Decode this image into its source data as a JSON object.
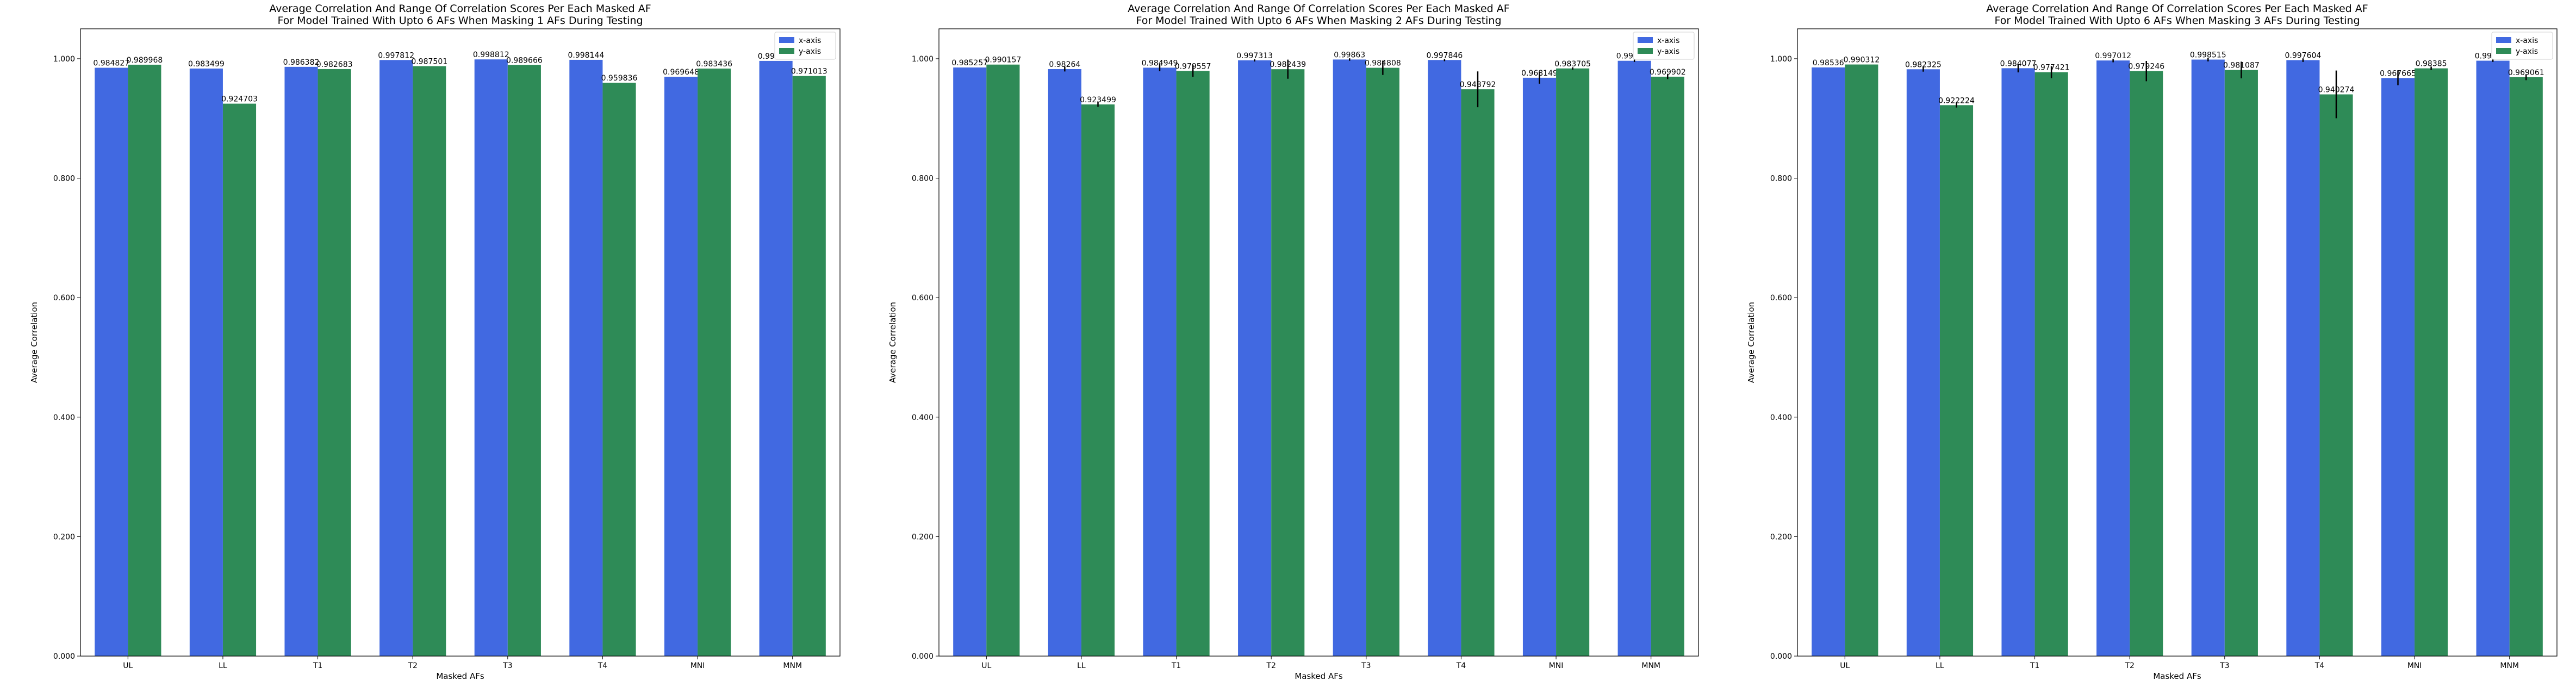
{
  "chart_data": [
    {
      "type": "bar",
      "title": "Average Correlation And Range Of Correlation Scores Per Each Masked AF",
      "subtitle": "For Model Trained With Upto 6 AFs When Masking 1 AFs During Testing",
      "xlabel": "Masked AFs",
      "ylabel": "Average Correlation",
      "ylim": [
        0,
        1.05
      ],
      "yticks": [
        "0.000",
        "0.200",
        "0.400",
        "0.600",
        "0.800",
        "1.000"
      ],
      "legend_placement": "top-right",
      "categories": [
        "UL",
        "LL",
        "T1",
        "T2",
        "T3",
        "T4",
        "MNI",
        "MNM"
      ],
      "series": [
        {
          "name": "x-axis",
          "color": "#4169e1",
          "values": [
            0.984827,
            0.983499,
            0.986382,
            0.997812,
            0.998812,
            0.998144,
            0.969648,
            0.996343
          ],
          "labels": [
            "0.984827",
            "0.983499",
            "0.986382",
            "0.997812",
            "0.998812",
            "0.998144",
            "0.969648",
            "0.996343"
          ],
          "err": [
            0,
            0,
            0,
            0,
            0,
            0,
            0,
            0
          ]
        },
        {
          "name": "y-axis",
          "color": "#2e8b57",
          "values": [
            0.989968,
            0.924703,
            0.982683,
            0.987501,
            0.989666,
            0.959836,
            0.983436,
            0.971013
          ],
          "labels": [
            "0.989968",
            "0.924703",
            "0.982683",
            "0.987501",
            "0.989666",
            "0.959836",
            "0.983436",
            "0.971013"
          ],
          "err": [
            0,
            0,
            0,
            0,
            0,
            0,
            0,
            0
          ]
        }
      ]
    },
    {
      "type": "bar",
      "title": "Average Correlation And Range Of Correlation Scores Per Each Masked AF",
      "subtitle": "For Model Trained With Upto 6 AFs When Masking 2 AFs During Testing",
      "xlabel": "Masked AFs",
      "ylabel": "Average Correlation",
      "ylim": [
        0,
        1.05
      ],
      "yticks": [
        "0.000",
        "0.200",
        "0.400",
        "0.600",
        "0.800",
        "1.000"
      ],
      "legend_placement": "top-right",
      "categories": [
        "UL",
        "LL",
        "T1",
        "T2",
        "T3",
        "T4",
        "MNI",
        "MNM"
      ],
      "series": [
        {
          "name": "x-axis",
          "color": "#4169e1",
          "values": [
            0.985257,
            0.98264,
            0.984949,
            0.997313,
            0.99863,
            0.997846,
            0.968149,
            0.996514
          ],
          "labels": [
            "0.985257",
            "0.98264",
            "0.984949",
            "0.997313",
            "0.99863",
            "0.997846",
            "0.968149",
            "0.996514"
          ],
          "err": [
            0,
            0.004,
            0.006,
            0.002,
            0.002,
            0.002,
            0.01,
            0.002
          ]
        },
        {
          "name": "y-axis",
          "color": "#2e8b57",
          "values": [
            0.990157,
            0.923499,
            0.979557,
            0.982439,
            0.984808,
            0.948792,
            0.983705,
            0.969902
          ],
          "labels": [
            "0.990157",
            "0.923499",
            "0.979557",
            "0.982439",
            "0.984808",
            "0.948792",
            "0.983705",
            "0.969902"
          ],
          "err": [
            0,
            0.004,
            0.01,
            0.016,
            0.012,
            0.03,
            0.002,
            0.004
          ]
        }
      ]
    },
    {
      "type": "bar",
      "title": "Average Correlation And Range Of Correlation Scores Per Each Masked AF",
      "subtitle": "For Model Trained With Upto 6 AFs When Masking 3 AFs During Testing",
      "xlabel": "Masked AFs",
      "ylabel": "Average Correlation",
      "ylim": [
        0,
        1.05
      ],
      "yticks": [
        "0.000",
        "0.200",
        "0.400",
        "0.600",
        "0.800",
        "1.000"
      ],
      "legend_placement": "top-right",
      "categories": [
        "UL",
        "LL",
        "T1",
        "T2",
        "T3",
        "T4",
        "MNI",
        "MNM"
      ],
      "series": [
        {
          "name": "x-axis",
          "color": "#4169e1",
          "values": [
            0.98536,
            0.982325,
            0.984077,
            0.997012,
            0.998515,
            0.997604,
            0.967665,
            0.996659
          ],
          "labels": [
            "0.98536",
            "0.982325",
            "0.984077",
            "0.997012",
            "0.998515",
            "0.997604",
            "0.967665",
            "0.996659"
          ],
          "err": [
            0,
            0.004,
            0.007,
            0.003,
            0.003,
            0.003,
            0.012,
            0.002
          ]
        },
        {
          "name": "y-axis",
          "color": "#2e8b57",
          "values": [
            0.990312,
            0.922224,
            0.977421,
            0.979246,
            0.981087,
            0.940274,
            0.98385,
            0.969061
          ],
          "labels": [
            "0.990312",
            "0.922224",
            "0.977421",
            "0.979246",
            "0.981087",
            "0.940274",
            "0.98385",
            "0.969061"
          ],
          "err": [
            0,
            0.004,
            0.01,
            0.017,
            0.014,
            0.04,
            0.003,
            0.005
          ]
        }
      ]
    }
  ]
}
